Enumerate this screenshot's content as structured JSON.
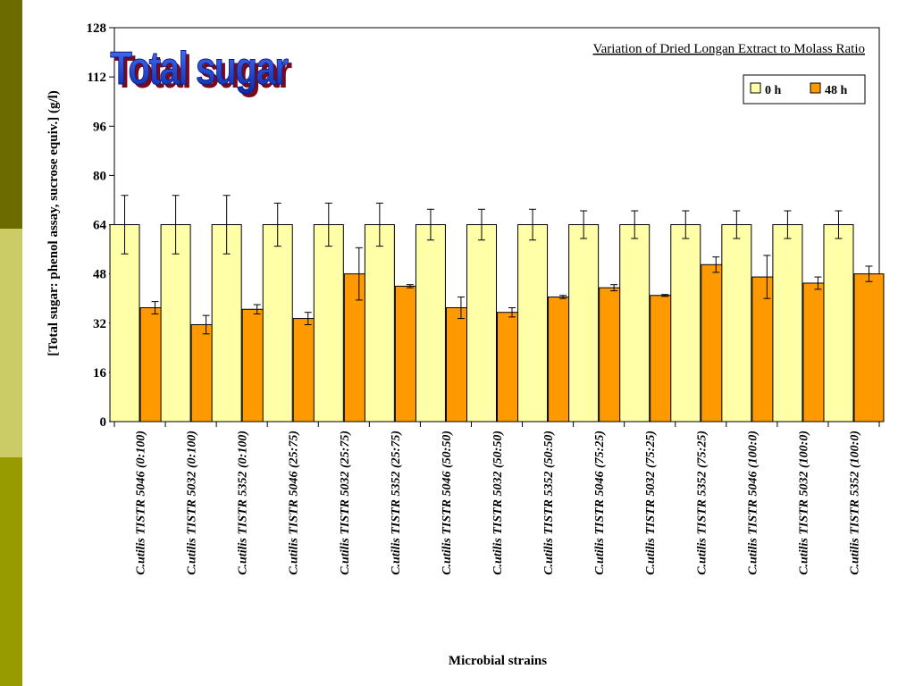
{
  "slide": {
    "side_bar_colors": [
      "#6b6b00",
      "#cccc66",
      "#999900"
    ]
  },
  "chart_data": {
    "type": "bar",
    "title": "Total sugar",
    "title_color": "#1f3fd0",
    "subtitle": "Variation of Dried Longan Extract to Molass Ratio",
    "xlabel": "Microbial strains",
    "ylabel": "[Total sugar: phenol assay, sucrose equiv.] (g/l)",
    "ylim": [
      0,
      128
    ],
    "yticks": [
      "0",
      "16",
      "32",
      "48",
      "64",
      "80",
      "96",
      "112",
      "128"
    ],
    "legend_position": "top-right",
    "grid": false,
    "categories": [
      "C.utilis TISTR 5046 (0:100)",
      "C.utilis TISTR 5032 (0:100)",
      "C.utilis TISTR 5352 (0:100)",
      "C.utilis TISTR 5046 (25:75)",
      "C.utilis TISTR 5032 (25:75)",
      "C.utilis TISTR 5352 (25:75)",
      "C.utilis TISTR 5046 (50:50)",
      "C.utilis TISTR 5032 (50:50)",
      "C.utilis TISTR 5352 (50:50)",
      "C.utilis TISTR 5046 (75:25)",
      "C.utilis TISTR 5032 (75:25)",
      "C.utilis TISTR 5352 (75:25)",
      "C.utilis TISTR 5046 (100:0)",
      "C.utilis TISTR 5032 (100:0)",
      "C.utilis TISTR 5352 (100:0)"
    ],
    "series": [
      {
        "name": "0 h",
        "color": "#ffffa8",
        "values": [
          64,
          64,
          64,
          64,
          64,
          64,
          64,
          64,
          64,
          64,
          64,
          64,
          64,
          64,
          64
        ],
        "errors": [
          9.5,
          9.5,
          9.5,
          7,
          7,
          7,
          5,
          5,
          5,
          4.5,
          4.5,
          4.5,
          4.5,
          4.5,
          4.5
        ]
      },
      {
        "name": "48 h",
        "color": "#ff9900",
        "values": [
          37,
          31.5,
          36.5,
          33.5,
          48,
          44,
          37,
          35.5,
          40.5,
          43.5,
          41,
          51,
          47,
          45,
          48
        ],
        "errors": [
          2,
          3,
          1.5,
          2,
          8.5,
          0.5,
          3.5,
          1.5,
          0.5,
          1,
          0.3,
          2.5,
          7,
          2,
          2.5
        ]
      }
    ]
  }
}
